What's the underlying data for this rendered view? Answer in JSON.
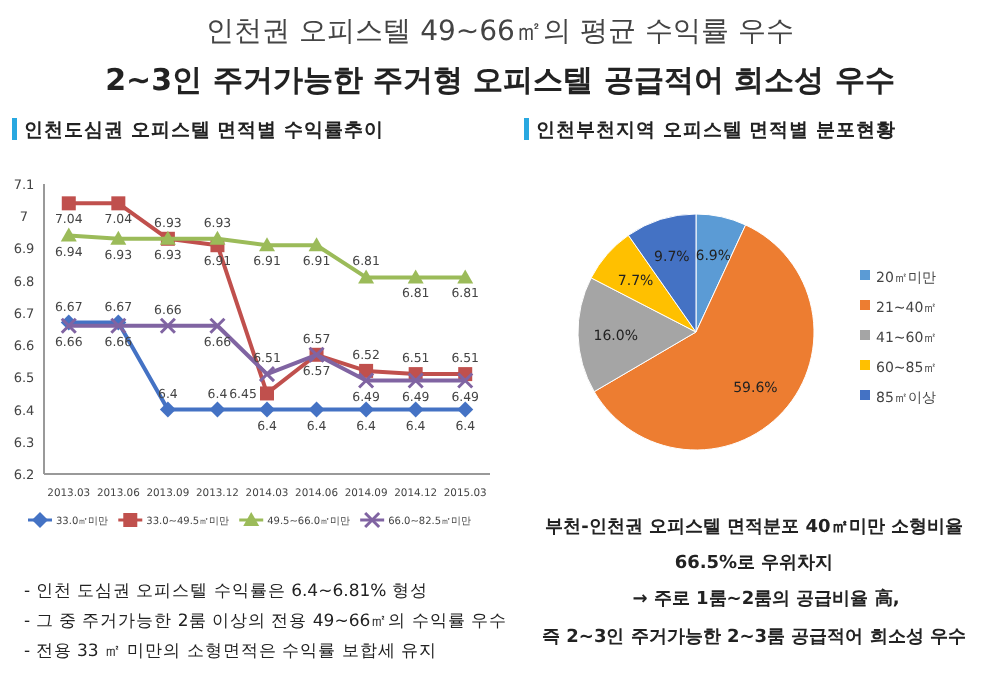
{
  "chart_data": [
    {
      "type": "line",
      "title": "인천도심권 오피스텔 면적별 수익률추이",
      "annotations": [
        "인천권 오피스텔 49~66㎡의 평균 수익률 우수",
        "2~3인 주거가능한 주거형 오피스텔 공급적어 희소성 우수",
        "-   인천 도심권 오피스텔 수익률은 6.4~6.81% 형성",
        "-   그 중 주거가능한 2룸 이상의 전용 49~66㎡의 수익률 우수",
        "-   전용 33 ㎡ 미만의 소형면적은 수익률 보합세 유지"
      ],
      "categories": [
        "2013.03",
        "2013.06",
        "2013.09",
        "2013.12",
        "2014.03",
        "2014.06",
        "2014.09",
        "2014.12",
        "2015.03"
      ],
      "ylim": [
        6.2,
        7.1
      ],
      "yticks": [
        6.2,
        6.3,
        6.4,
        6.5,
        6.6,
        6.7,
        6.8,
        6.9,
        {
          "value": 7,
          "label": "7"
        },
        7.1
      ],
      "grid": false,
      "legend": "bottom",
      "data_labels": true,
      "series": [
        {
          "name": "33.0㎡미만",
          "color": "#4472c4",
          "marker": "diamond",
          "values": [
            6.67,
            6.67,
            6.4,
            6.4,
            6.4,
            6.4,
            6.4,
            6.4,
            6.4
          ]
        },
        {
          "name": "33.0~49.5㎡미만",
          "color": "#c0504d",
          "marker": "square",
          "values": [
            7.04,
            7.04,
            6.93,
            6.91,
            6.45,
            6.57,
            6.52,
            6.51,
            6.51
          ]
        },
        {
          "name": "49.5~66.0㎡미만",
          "color": "#9bbb59",
          "marker": "triangle",
          "values": [
            6.94,
            6.93,
            6.93,
            6.93,
            6.91,
            6.91,
            6.81,
            6.81,
            6.81
          ]
        },
        {
          "name": "66.0~82.5㎡미만",
          "color": "#8064a2",
          "marker": "cross",
          "values": [
            6.66,
            6.66,
            6.66,
            6.66,
            6.51,
            6.57,
            6.49,
            6.49,
            6.49
          ]
        }
      ]
    },
    {
      "type": "pie",
      "title": "인천부천지역 오피스텔 면적별 분포현황",
      "annotations": [
        "부천-인천권 오피스텔 면적분포 40㎡미만 소형비율",
        "66.5%로 우위차지",
        "→ 주로 1룸~2룸의 공급비율 高,",
        "즉 2~3인 주거가능한 2~3룸 공급적어 희소성 우수"
      ],
      "categories": [
        "20㎡미만",
        "21~40㎡",
        "41~60㎡",
        "60~85㎡",
        "85㎡이상"
      ],
      "values": [
        6.9,
        59.6,
        16.0,
        7.7,
        9.7
      ],
      "value_labels": [
        "6.9%",
        "59.6%",
        "16.0%",
        "7.7%",
        "9.7%"
      ],
      "colors": [
        "#5b9bd5",
        "#ed7d31",
        "#a5a5a5",
        "#ffc000",
        "#4472c4"
      ],
      "legend": "right"
    }
  ]
}
